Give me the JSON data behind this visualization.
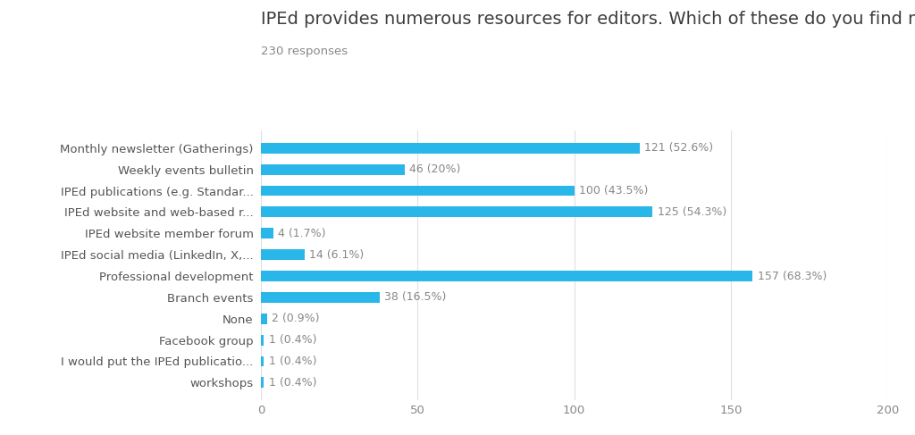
{
  "title": "IPEd provides numerous resources for editors. Which of these do you find most useful?",
  "subtitle": "230 responses",
  "categories": [
    "Monthly newsletter (Gatherings)",
    "Weekly events bulletin",
    "IPEd publications (e.g. Standar...",
    "IPEd website and web-based r...",
    "IPEd website member forum",
    "IPEd social media (LinkedIn, X,...",
    "Professional development",
    "Branch events",
    "None",
    "Facebook group",
    "I would put the IPEd publicatio...",
    "workshops"
  ],
  "values": [
    121,
    46,
    100,
    125,
    4,
    14,
    157,
    38,
    2,
    1,
    1,
    1
  ],
  "labels": [
    "121 (52.6%)",
    "46 (20%)",
    "100 (43.5%)",
    "125 (54.3%)",
    "4 (1.7%)",
    "14 (6.1%)",
    "157 (68.3%)",
    "38 (16.5%)",
    "2 (0.9%)",
    "1 (0.4%)",
    "1 (0.4%)",
    "1 (0.4%)"
  ],
  "bar_color": "#29b6e8",
  "label_color": "#888888",
  "title_color": "#3d3d3d",
  "subtitle_color": "#888888",
  "ytick_color": "#555555",
  "xtick_color": "#888888",
  "background_color": "#ffffff",
  "grid_color": "#e0e0e0",
  "xlim": [
    0,
    200
  ],
  "xticks": [
    0,
    50,
    100,
    150,
    200
  ],
  "title_fontsize": 14,
  "subtitle_fontsize": 9.5,
  "label_fontsize": 9,
  "tick_fontsize": 9.5,
  "category_fontsize": 9.5,
  "bar_height": 0.5
}
